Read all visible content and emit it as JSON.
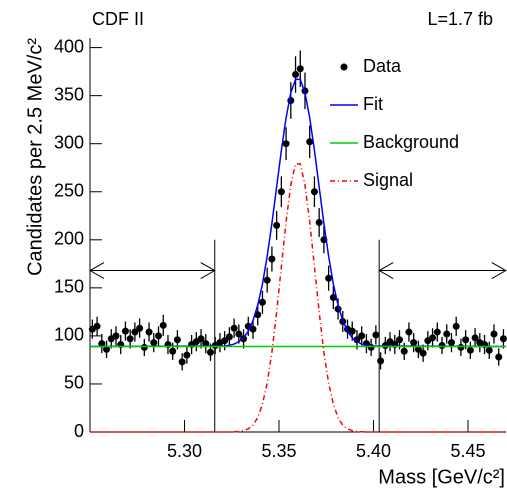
{
  "chart_data": {
    "type": "scatter",
    "corner_left": "CDF II",
    "corner_right": "L=1.7 fb",
    "x_label": "Mass [GeV/c²]",
    "y_label": "Candidates per 2.5 MeV/c²",
    "xlim": [
      5.25,
      5.47
    ],
    "ylim": [
      0,
      410
    ],
    "xticks": [
      {
        "value": 5.3,
        "label": "5.30"
      },
      5.35,
      {
        "value": 5.4,
        "label": "5.40"
      },
      5.45
    ],
    "yticks": [
      0,
      50,
      100,
      150,
      200,
      250,
      300,
      350,
      400
    ],
    "legend": "top-right",
    "sidebands": [
      [
        5.25,
        5.316
      ],
      [
        5.403,
        5.47
      ]
    ],
    "sideband_line_top": 200,
    "arrow_y": 168,
    "series": [
      {
        "name": "Data",
        "type": "scatter",
        "color": "#000000",
        "x": [
          5.25125,
          5.25375,
          5.25625,
          5.25875,
          5.26125,
          5.26375,
          5.26625,
          5.26875,
          5.27125,
          5.27375,
          5.27625,
          5.27875,
          5.28125,
          5.28375,
          5.28625,
          5.28875,
          5.29125,
          5.29375,
          5.29625,
          5.29875,
          5.30125,
          5.30375,
          5.30625,
          5.30875,
          5.31125,
          5.31375,
          5.31625,
          5.31875,
          5.32125,
          5.32375,
          5.32625,
          5.32875,
          5.33125,
          5.33375,
          5.33625,
          5.33875,
          5.34125,
          5.34375,
          5.34625,
          5.34875,
          5.35125,
          5.35375,
          5.35625,
          5.35875,
          5.36125,
          5.36375,
          5.36625,
          5.36875,
          5.37125,
          5.37375,
          5.37625,
          5.37875,
          5.38125,
          5.38375,
          5.38625,
          5.38875,
          5.39125,
          5.39375,
          5.39625,
          5.39875,
          5.40125,
          5.40375,
          5.40625,
          5.40875,
          5.41125,
          5.41375,
          5.41625,
          5.41875,
          5.42125,
          5.42375,
          5.42625,
          5.42875,
          5.43125,
          5.43375,
          5.43625,
          5.43875,
          5.44125,
          5.44375,
          5.44625,
          5.44875,
          5.45125,
          5.45375,
          5.45625,
          5.45875,
          5.46125,
          5.46375,
          5.46625,
          5.46875
        ],
        "values": [
          107,
          110,
          92,
          86,
          97,
          100,
          91,
          105,
          97,
          104,
          108,
          88,
          104,
          93,
          100,
          111,
          91,
          84,
          96,
          73,
          80,
          91,
          94,
          97,
          92,
          83,
          90,
          93,
          95,
          99,
          108,
          102,
          97,
          110,
          107,
          122,
          135,
          158,
          180,
          215,
          250,
          300,
          345,
          372,
          378,
          355,
          302,
          250,
          218,
          200,
          160,
          140,
          128,
          115,
          107,
          105,
          96,
          100,
          92,
          88,
          101,
          74,
          90,
          94,
          91,
          96,
          84,
          104,
          93,
          86,
          82,
          95,
          98,
          104,
          90,
          102,
          93,
          110,
          88,
          96,
          85,
          98,
          93,
          91,
          85,
          102,
          78,
          97
        ],
        "errors": [
          10,
          10,
          10,
          9,
          10,
          10,
          10,
          10,
          10,
          10,
          10,
          9,
          10,
          10,
          10,
          11,
          10,
          9,
          10,
          9,
          9,
          10,
          10,
          10,
          10,
          9,
          9,
          10,
          10,
          10,
          10,
          10,
          10,
          10,
          10,
          11,
          12,
          13,
          13,
          15,
          16,
          17,
          19,
          19,
          19,
          19,
          17,
          16,
          15,
          14,
          13,
          12,
          11,
          11,
          10,
          10,
          10,
          10,
          10,
          9,
          10,
          9,
          9,
          10,
          10,
          10,
          9,
          10,
          10,
          9,
          9,
          10,
          10,
          10,
          9,
          10,
          10,
          10,
          9,
          10,
          9,
          10,
          10,
          10,
          9,
          10,
          9,
          10
        ]
      },
      {
        "name": "Fit",
        "type": "line",
        "color": "#0000ff",
        "x": [
          5.25,
          5.32125,
          5.32375,
          5.32625,
          5.32875,
          5.33125,
          5.33375,
          5.33625,
          5.33875,
          5.34125,
          5.34375,
          5.34625,
          5.34875,
          5.35125,
          5.35375,
          5.35625,
          5.35875,
          5.36125,
          5.36375,
          5.36625,
          5.36875,
          5.37125,
          5.37375,
          5.37625,
          5.37875,
          5.38125,
          5.38375,
          5.38625,
          5.38875,
          5.39125,
          5.39375,
          5.39625,
          5.39875,
          5.47
        ],
        "values": [
          89,
          89.5,
          90.2,
          91.5,
          94,
          98,
          105,
          116,
          132,
          154,
          183,
          217,
          255,
          293,
          327,
          353,
          367,
          367,
          353,
          327,
          293,
          255,
          217,
          183,
          154,
          132,
          116,
          105,
          98,
          94,
          91.5,
          90.2,
          89.5,
          89
        ]
      },
      {
        "name": "Background",
        "type": "line",
        "color": "#00cc00",
        "x": [
          5.25,
          5.47
        ],
        "values": [
          89,
          89
        ]
      },
      {
        "name": "Signal",
        "type": "line",
        "dash": "dashdot",
        "color": "#ff0000",
        "x": [
          5.25,
          5.32375,
          5.32625,
          5.32875,
          5.33125,
          5.33375,
          5.33625,
          5.33875,
          5.34125,
          5.34375,
          5.34625,
          5.34875,
          5.35125,
          5.35375,
          5.35625,
          5.35875,
          5.36125,
          5.36375,
          5.36625,
          5.36875,
          5.37125,
          5.37375,
          5.37625,
          5.37875,
          5.38125,
          5.38375,
          5.38625,
          5.38875,
          5.39125,
          5.39375,
          5.39625,
          5.47
        ],
        "values": [
          0,
          0,
          0.2,
          0.5,
          1.4,
          3.3,
          7,
          15,
          29,
          51,
          83,
          125,
          172,
          219,
          257,
          279,
          279,
          257,
          219,
          172,
          125,
          83,
          51,
          29,
          15,
          7,
          3.3,
          1.4,
          0.5,
          0.2,
          0,
          0
        ]
      }
    ]
  }
}
